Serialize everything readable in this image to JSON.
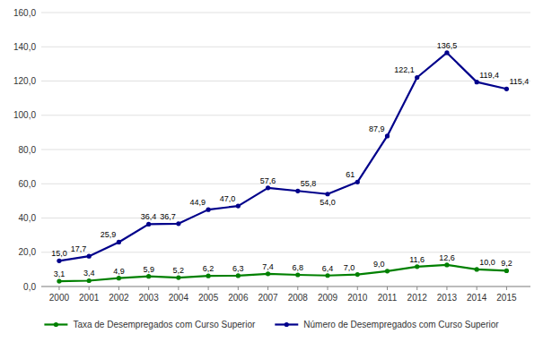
{
  "chart_data": {
    "type": "line",
    "x": [
      2000,
      2001,
      2002,
      2003,
      2004,
      2005,
      2006,
      2007,
      2008,
      2009,
      2010,
      2011,
      2012,
      2013,
      2014,
      2015
    ],
    "xlim": [
      1999.4,
      2015.8
    ],
    "xticks": [
      2000,
      2001,
      2002,
      2003,
      2004,
      2005,
      2006,
      2007,
      2008,
      2009,
      2010,
      2011,
      2012,
      2013,
      2014,
      2015
    ],
    "ylim": [
      0,
      160
    ],
    "yticks": [
      {
        "value": 0,
        "label": "0,0"
      },
      {
        "value": 20,
        "label": "20,0"
      },
      {
        "value": 40,
        "label": "40,0"
      },
      {
        "value": 60,
        "label": "60,0"
      },
      {
        "value": 80,
        "label": "80,0"
      },
      {
        "value": 100,
        "label": "100,0"
      },
      {
        "value": 120,
        "label": "120,0"
      },
      {
        "value": 140,
        "label": "140,0"
      },
      {
        "value": 160,
        "label": "160,0"
      }
    ],
    "grid": true,
    "legend": "bottom",
    "data_labels": true,
    "series": [
      {
        "name": "Taxa de Desempregados com Curso Superior",
        "color": "#008000",
        "marker": "circle",
        "line_style": "solid",
        "values": [
          3.1,
          3.4,
          4.9,
          5.9,
          5.2,
          6.2,
          6.3,
          7.4,
          6.8,
          6.4,
          7.0,
          9.0,
          11.6,
          12.6,
          10.0,
          9.2
        ],
        "value_labels": [
          "3,1",
          "3,4",
          "4,9",
          "5,9",
          "5,2",
          "6,2",
          "6,3",
          "7,4",
          "6,8",
          "6,4",
          "7,0",
          "9,0",
          "11,6",
          "12,6",
          "10,0",
          "9,2"
        ]
      },
      {
        "name": "Número de Desempregados com Curso Superior",
        "color": "#00008B",
        "marker": "circle",
        "line_style": "solid",
        "values": [
          15.0,
          17.7,
          25.9,
          36.4,
          36.7,
          44.9,
          47.0,
          57.6,
          55.8,
          54.0,
          61.0,
          87.9,
          122.1,
          136.5,
          119.4,
          115.4
        ],
        "value_labels": [
          "15,0",
          "17,7",
          "25,9",
          "36,4",
          "36,7",
          "44,9",
          "47,0",
          "57,6",
          "55,8",
          "54,0",
          "61",
          "87,9",
          "122,1",
          "136,5",
          "119,4",
          "115,4"
        ]
      }
    ]
  }
}
